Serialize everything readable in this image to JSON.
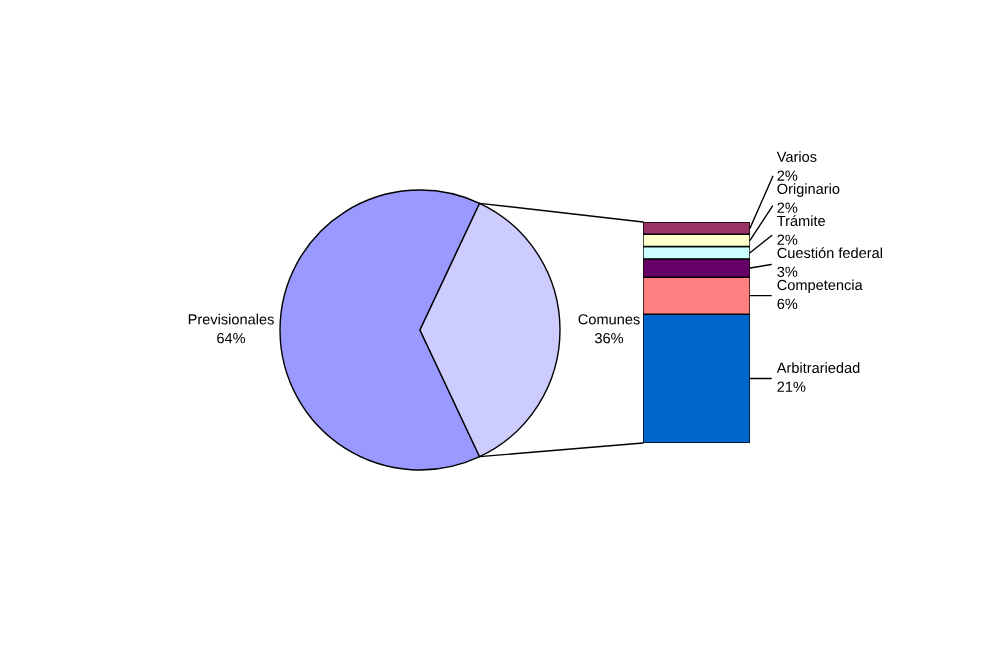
{
  "chart_data": [
    {
      "type": "pie",
      "categories": [
        "Previsionales",
        "Comunes"
      ],
      "values": [
        64,
        36
      ],
      "value_labels": [
        "64%",
        "36%"
      ],
      "colors": [
        "#9999ff",
        "#ccccff"
      ]
    },
    {
      "type": "bar",
      "stacked": true,
      "categories": [
        null
      ],
      "series": [
        {
          "name": "Arbitrariedad",
          "color": "#0066cc",
          "values": [
            21
          ],
          "value_labels": [
            "21%"
          ]
        },
        {
          "name": "Competencia",
          "color": "#ff8080",
          "values": [
            6
          ],
          "value_labels": [
            "6%"
          ]
        },
        {
          "name": "Cuestión federal",
          "color": "#660066",
          "values": [
            3
          ],
          "value_labels": [
            "3%"
          ]
        },
        {
          "name": "Trámite",
          "color": "#ccffff",
          "values": [
            2
          ],
          "value_labels": [
            "2%"
          ]
        },
        {
          "name": "Originario",
          "color": "#ffffcc",
          "values": [
            2
          ],
          "value_labels": [
            "2%"
          ]
        },
        {
          "name": "Varios",
          "color": "#993366",
          "values": [
            2
          ],
          "value_labels": [
            "2%"
          ]
        }
      ]
    }
  ]
}
